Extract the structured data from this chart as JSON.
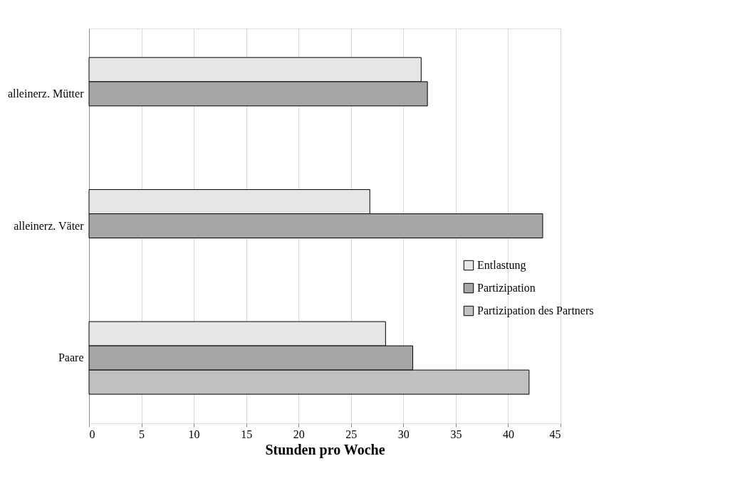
{
  "chart_data": {
    "type": "bar",
    "orientation": "horizontal",
    "xlabel": "Stunden pro Woche",
    "categories": [
      "alleinerz. Mütter",
      "alleinerz. Väter",
      "Paare"
    ],
    "series": [
      {
        "name": "Entlastung",
        "color": "#e6e6e6",
        "values": [
          31.7,
          26.8,
          28.3
        ]
      },
      {
        "name": "Partizipation",
        "color": "#a6a6a6",
        "values": [
          32.3,
          43.3,
          30.9
        ]
      },
      {
        "name": "Partizipation des Partners",
        "color": "#c0c0c0",
        "values": [
          null,
          null,
          42.0
        ]
      }
    ],
    "xlim": [
      0,
      45
    ],
    "xticks": [
      0,
      5,
      10,
      15,
      20,
      25,
      30,
      35,
      40,
      45
    ],
    "grid": "x",
    "legend": "right"
  }
}
